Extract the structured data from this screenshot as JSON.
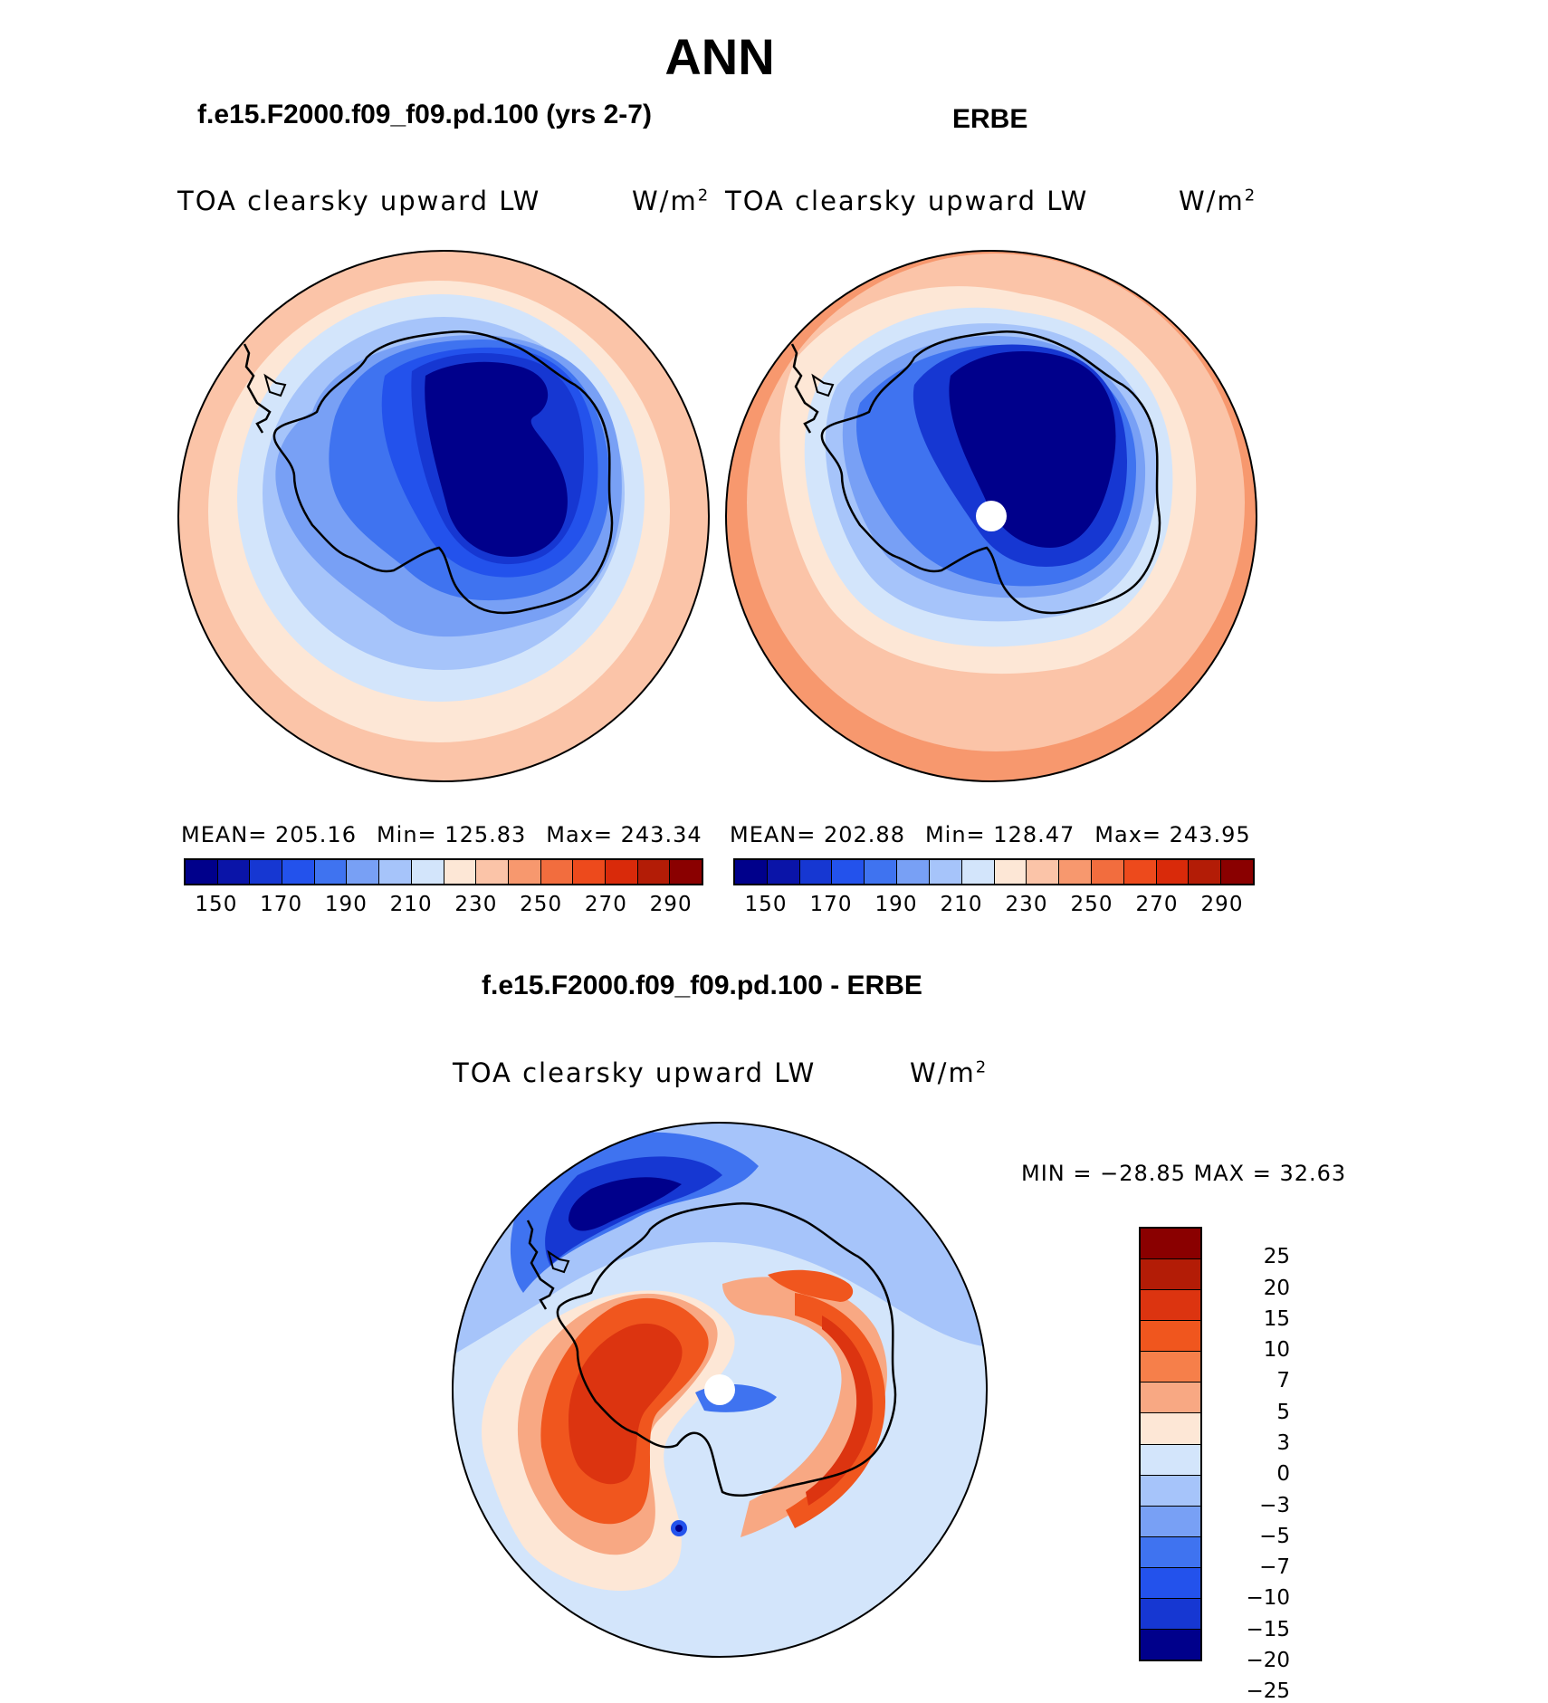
{
  "title": "ANN",
  "panels": {
    "model": {
      "case_title": "f.e15.F2000.f09_f09.pd.100 (yrs 2-7)",
      "var_label": "TOA clearsky upward LW",
      "unit_base": "W/m",
      "unit_exp": "2",
      "mean_text": "MEAN= 205.16",
      "min_text": "Min= 125.83",
      "max_text": "Max= 243.34"
    },
    "obs": {
      "case_title": "ERBE",
      "var_label": "TOA clearsky upward LW",
      "unit_base": "W/m",
      "unit_exp": "2",
      "mean_text": "MEAN= 202.88",
      "min_text": "Min= 128.47",
      "max_text": "Max= 243.95"
    },
    "diff": {
      "case_title": "f.e15.F2000.f09_f09.pd.100 - ERBE",
      "var_label": "TOA clearsky upward LW",
      "unit_base": "W/m",
      "unit_exp": "2",
      "minmax_text": "MIN = −28.85 MAX =   32.63"
    }
  },
  "colorbar_abs": {
    "colors": [
      "#00008b",
      "#0a14a8",
      "#1637d2",
      "#2352ec",
      "#3f73f0",
      "#78a0f5",
      "#a6c4fa",
      "#d3e5fb",
      "#fde7d6",
      "#fbc4a8",
      "#f7986e",
      "#f26d3e",
      "#ed4a1c",
      "#d92a0a",
      "#b31c06",
      "#8a0000"
    ],
    "ticks": [
      "150",
      "170",
      "190",
      "210",
      "230",
      "250",
      "270",
      "290"
    ]
  },
  "colorbar_diff": {
    "colors": [
      "#8a0000",
      "#b31c06",
      "#dc3410",
      "#f0561e",
      "#f67f4a",
      "#f8a883",
      "#fde7d6",
      "#d3e5fb",
      "#a6c4fa",
      "#78a0f5",
      "#3f73f0",
      "#2352ec",
      "#1637d2",
      "#00008b"
    ],
    "ticks": [
      "25",
      "20",
      "15",
      "10",
      "7",
      "5",
      "3",
      "0",
      "−3",
      "−5",
      "−7",
      "−10",
      "−15",
      "−20",
      "−25"
    ]
  }
}
